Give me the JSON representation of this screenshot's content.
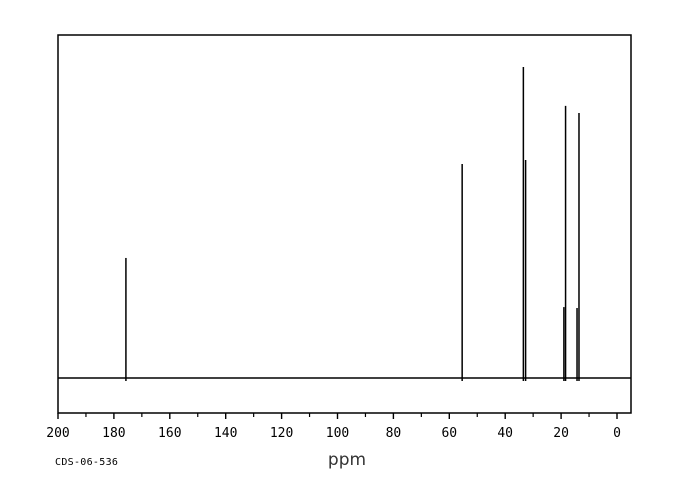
{
  "colors": {
    "background": "#ffffff",
    "line": "#000000",
    "tick_text": "#000000",
    "xlabel_text": "#333333"
  },
  "chart_data": {
    "type": "line",
    "subtype": "nmr-stick-spectrum",
    "xlabel": "ppm",
    "annotation": "CDS-06-536",
    "grid": false,
    "legend": false,
    "x_axis": {
      "min": 0,
      "max": 200,
      "reversed": true,
      "major_tick_step": 20,
      "minor_tick_step": 10,
      "tick_labels": [
        "200",
        "180",
        "160",
        "140",
        "120",
        "100",
        "80",
        "60",
        "40",
        "20",
        "0"
      ]
    },
    "ylim": [
      0,
      1000
    ],
    "peaks": [
      {
        "ppm": 175.7,
        "intensity": 386
      },
      {
        "ppm": 55.4,
        "intensity": 688
      },
      {
        "ppm": 33.5,
        "intensity": 1000
      },
      {
        "ppm": 32.7,
        "intensity": 701
      },
      {
        "ppm": 19.0,
        "intensity": 228
      },
      {
        "ppm": 18.4,
        "intensity": 875
      },
      {
        "ppm": 14.3,
        "intensity": 225
      },
      {
        "ppm": 13.6,
        "intensity": 852
      }
    ]
  }
}
